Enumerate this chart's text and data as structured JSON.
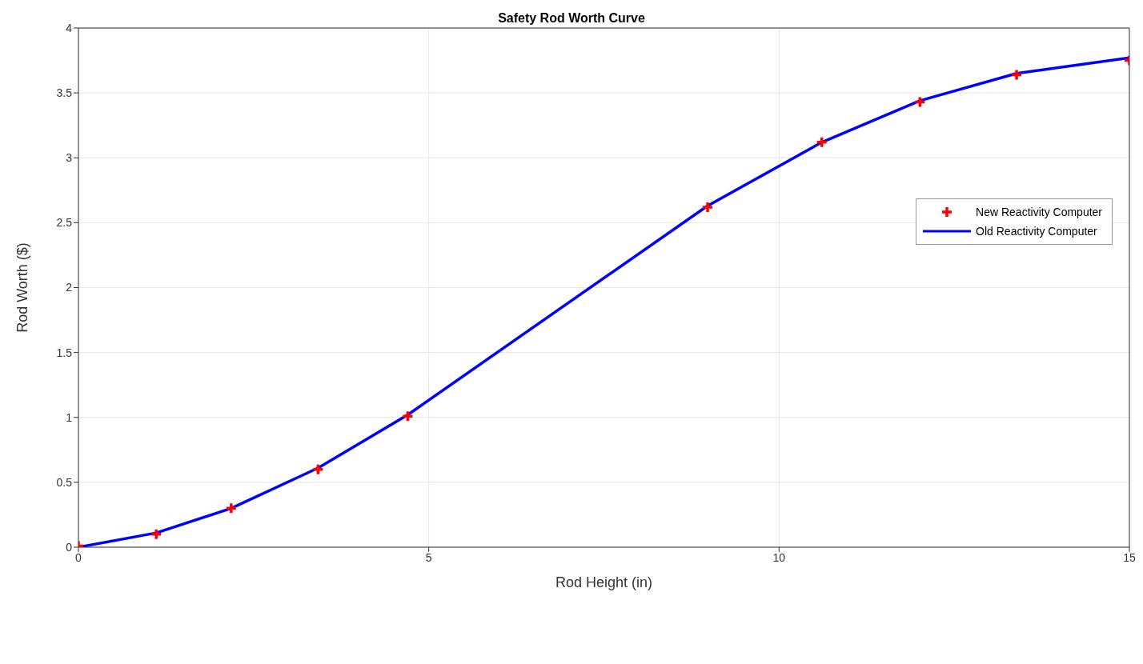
{
  "chart_data": {
    "type": "line",
    "title": "Safety Rod Worth Curve",
    "xlabel": "Rod Height (in)",
    "ylabel": "Rod Worth ($)",
    "xlim": [
      0,
      15
    ],
    "xticks": [
      0,
      5,
      10,
      15
    ],
    "ylim": [
      0,
      4
    ],
    "yticks": [
      0,
      0.5,
      1,
      1.5,
      2,
      2.5,
      3,
      3.5,
      4
    ],
    "grid": true,
    "legend": "right",
    "series": [
      {
        "name": "New Reactivity Computer",
        "type": "scatter",
        "marker": "cross",
        "color": "#ff0000",
        "x": [
          0,
          1.11,
          2.18,
          3.42,
          4.7,
          8.98,
          10.61,
          12.01,
          13.39,
          15
        ],
        "values": [
          0.01,
          0.1,
          0.3,
          0.6,
          1.01,
          2.62,
          3.12,
          3.43,
          3.64,
          3.75
        ]
      },
      {
        "name": "Old Reactivity Computer",
        "marker": "none",
        "color": "#0000ff",
        "x": [
          0,
          1.11,
          2.18,
          3.42,
          4.7,
          8.98,
          10.61,
          12.01,
          13.39,
          15
        ],
        "values": [
          0,
          0.11,
          0.3,
          0.61,
          1.02,
          2.63,
          3.12,
          3.44,
          3.65,
          3.77
        ]
      }
    ]
  }
}
